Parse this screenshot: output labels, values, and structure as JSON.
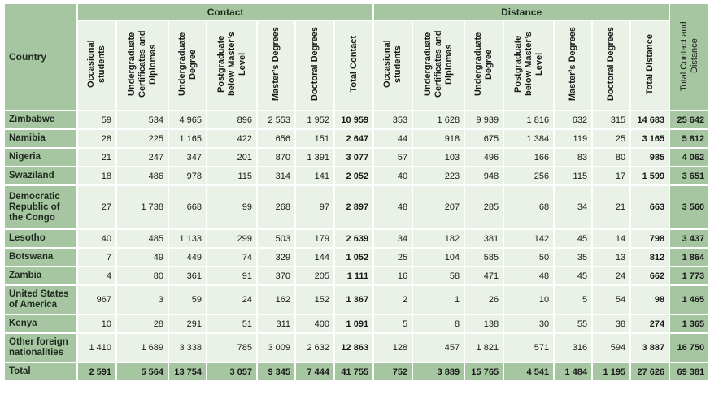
{
  "headers": {
    "country": "Country",
    "contact": "Contact",
    "distance": "Distance",
    "contact_cols": [
      "Occasional students",
      "Undergraduate Certificates and Diplomas",
      "Undergraduate Degree",
      "Postgraduate below Master’s Level",
      "Master’s Degrees",
      "Doctoral Degrees",
      "Total Contact"
    ],
    "distance_cols": [
      "Occasional students",
      "Undergraduate Certificates and Diplomas",
      "Undergraduate Degree",
      "Postgraduate below Master’s Level",
      "Master’s Degrees",
      "Doctoral Degrees",
      "Total Distance"
    ],
    "grand": "Total Contact and Distance"
  },
  "rows": [
    {
      "country": "Zimbabwe",
      "contact": [
        "59",
        "534",
        "4 965",
        "896",
        "2 553",
        "1 952"
      ],
      "total_contact": "10 959",
      "distance": [
        "353",
        "1 628",
        "9 939",
        "1 816",
        "632",
        "315"
      ],
      "total_distance": "14 683",
      "grand": "25 642"
    },
    {
      "country": "Namibia",
      "contact": [
        "28",
        "225",
        "1 165",
        "422",
        "656",
        "151"
      ],
      "total_contact": "2 647",
      "distance": [
        "44",
        "918",
        "675",
        "1 384",
        "119",
        "25"
      ],
      "total_distance": "3 165",
      "grand": "5 812"
    },
    {
      "country": "Nigeria",
      "contact": [
        "21",
        "247",
        "347",
        "201",
        "870",
        "1 391"
      ],
      "total_contact": "3 077",
      "distance": [
        "57",
        "103",
        "496",
        "166",
        "83",
        "80"
      ],
      "total_distance": "985",
      "grand": "4 062"
    },
    {
      "country": "Swaziland",
      "contact": [
        "18",
        "486",
        "978",
        "115",
        "314",
        "141"
      ],
      "total_contact": "2 052",
      "distance": [
        "40",
        "223",
        "948",
        "256",
        "115",
        "17"
      ],
      "total_distance": "1 599",
      "grand": "3 651"
    },
    {
      "country": "Democratic Republic of the Congo",
      "contact": [
        "27",
        "1 738",
        "668",
        "99",
        "268",
        "97"
      ],
      "total_contact": "2 897",
      "distance": [
        "48",
        "207",
        "285",
        "68",
        "34",
        "21"
      ],
      "total_distance": "663",
      "grand": "3 560"
    },
    {
      "country": "Lesotho",
      "contact": [
        "40",
        "485",
        "1 133",
        "299",
        "503",
        "179"
      ],
      "total_contact": "2 639",
      "distance": [
        "34",
        "182",
        "381",
        "142",
        "45",
        "14"
      ],
      "total_distance": "798",
      "grand": "3 437"
    },
    {
      "country": "Botswana",
      "contact": [
        "7",
        "49",
        "449",
        "74",
        "329",
        "144"
      ],
      "total_contact": "1 052",
      "distance": [
        "25",
        "104",
        "585",
        "50",
        "35",
        "13"
      ],
      "total_distance": "812",
      "grand": "1 864"
    },
    {
      "country": "Zambia",
      "contact": [
        "4",
        "80",
        "361",
        "91",
        "370",
        "205"
      ],
      "total_contact": "1 111",
      "distance": [
        "16",
        "58",
        "471",
        "48",
        "45",
        "24"
      ],
      "total_distance": "662",
      "grand": "1 773"
    },
    {
      "country": "United States of America",
      "contact": [
        "967",
        "3",
        "59",
        "24",
        "162",
        "152"
      ],
      "total_contact": "1 367",
      "distance": [
        "2",
        "1",
        "26",
        "10",
        "5",
        "54"
      ],
      "total_distance": "98",
      "grand": "1 465"
    },
    {
      "country": "Kenya",
      "contact": [
        "10",
        "28",
        "291",
        "51",
        "311",
        "400"
      ],
      "total_contact": "1 091",
      "distance": [
        "5",
        "8",
        "138",
        "30",
        "55",
        "38"
      ],
      "total_distance": "274",
      "grand": "1 365"
    },
    {
      "country": "Other foreign nationalities",
      "contact": [
        "1 410",
        "1 689",
        "3 338",
        "785",
        "3 009",
        "2 632"
      ],
      "total_contact": "12 863",
      "distance": [
        "128",
        "457",
        "1 821",
        "571",
        "316",
        "594"
      ],
      "total_distance": "3 887",
      "grand": "16 750"
    }
  ],
  "total": {
    "country": "Total",
    "contact": [
      "2 591",
      "5 564",
      "13 754",
      "3 057",
      "9 345",
      "7 444"
    ],
    "total_contact": "41 755",
    "distance": [
      "752",
      "3 889",
      "15 765",
      "4 541",
      "1 484",
      "1 195"
    ],
    "total_distance": "27 626",
    "grand": "69 381"
  }
}
